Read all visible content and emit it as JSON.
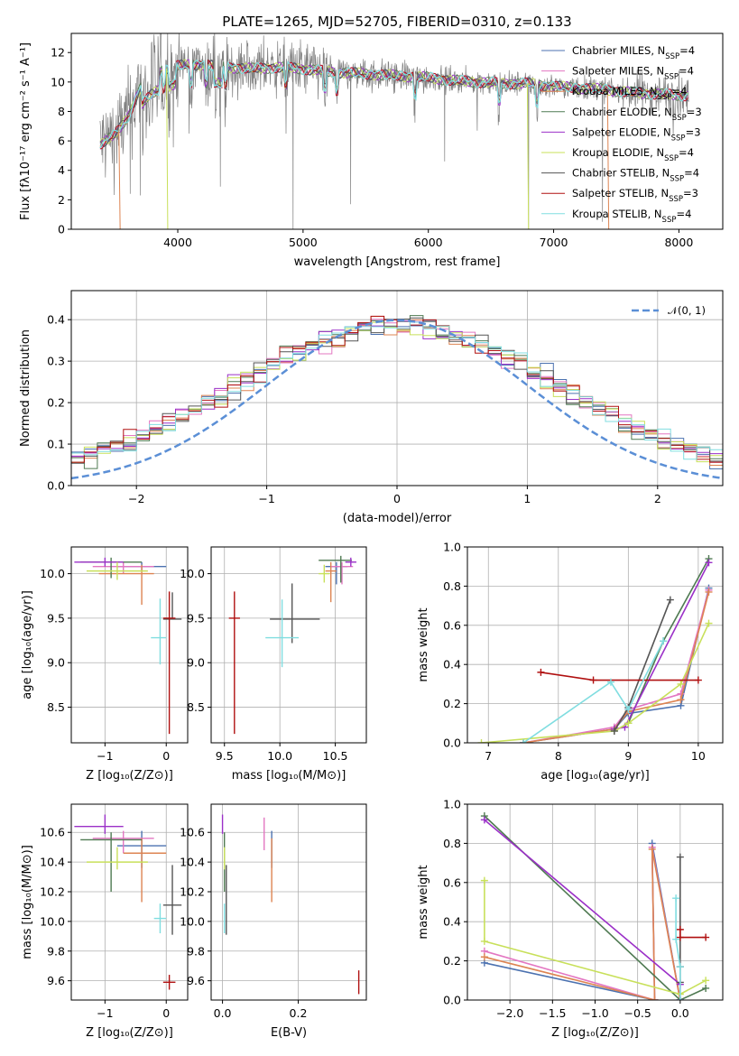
{
  "colors": {
    "Chabrier MILES": "#4c72b0",
    "Salpeter MILES": "#e377c2",
    "Kroupa MILES": "#dd8452",
    "Chabrier ELODIE": "#4f7a52",
    "Salpeter ELODIE": "#9b30c8",
    "Kroupa ELODIE": "#c8e05a",
    "Chabrier STELIB": "#555555",
    "Salpeter STELIB": "#b01010",
    "Kroupa STELIB": "#80dde0",
    "data": "#808080",
    "normal": "#5b8fd6"
  },
  "chart_data": [
    {
      "type": "line",
      "title": "PLATE=1265, MJD=52705, FIBERID=0310, z=0.133",
      "xlabel": "wavelength [Angstrom, rest frame]",
      "ylabel": "Flux [fλ10⁻¹⁷ erg cm⁻² s⁻¹ A⁻¹]",
      "xlim": [
        3150,
        8350
      ],
      "ylim": [
        0,
        13.3
      ],
      "xticks": [
        4000,
        5000,
        6000,
        7000,
        8000
      ],
      "yticks": [
        0,
        2,
        4,
        6,
        8,
        10,
        12
      ],
      "legend_position": "right",
      "legend": [
        {
          "label": "Chabrier MILES, N",
          "sub": "SSP",
          "eq": "=4",
          "color": "Chabrier MILES"
        },
        {
          "label": "Salpeter MILES, N",
          "sub": "SSP",
          "eq": "=4",
          "color": "Salpeter MILES"
        },
        {
          "label": "Kroupa MILES, N",
          "sub": "SSP",
          "eq": "=4",
          "color": "Kroupa MILES"
        },
        {
          "label": "Chabrier ELODIE, N",
          "sub": "SSP",
          "eq": "=3",
          "color": "Chabrier ELODIE"
        },
        {
          "label": "Salpeter ELODIE, N",
          "sub": "SSP",
          "eq": "=3",
          "color": "Salpeter ELODIE"
        },
        {
          "label": "Kroupa ELODIE, N",
          "sub": "SSP",
          "eq": "=4",
          "color": "Kroupa ELODIE"
        },
        {
          "label": "Chabrier STELIB, N",
          "sub": "SSP",
          "eq": "=4",
          "color": "Chabrier STELIB"
        },
        {
          "label": "Salpeter STELIB, N",
          "sub": "SSP",
          "eq": "=3",
          "color": "Salpeter STELIB"
        },
        {
          "label": "Kroupa STELIB, N",
          "sub": "SSP",
          "eq": "=4",
          "color": "Kroupa STELIB"
        }
      ],
      "continuum": {
        "x": [
          3380,
          3500,
          3600,
          3700,
          3800,
          3900,
          4000,
          4200,
          4400,
          4600,
          4800,
          5000,
          5200,
          5400,
          5600,
          5800,
          6000,
          6200,
          6400,
          6600,
          6800,
          7000,
          7200,
          7400,
          7600,
          7800,
          8000,
          8080
        ],
        "y": [
          5.8,
          6.4,
          7.6,
          9.6,
          10.4,
          10.9,
          11.1,
          11.2,
          11.0,
          10.9,
          11.0,
          10.9,
          10.7,
          10.6,
          10.5,
          10.4,
          10.3,
          10.1,
          10.0,
          9.9,
          9.9,
          9.7,
          9.6,
          9.5,
          9.3,
          9.2,
          9.1,
          9.1
        ]
      }
    },
    {
      "type": "line",
      "xlabel": "(data-model)/error",
      "ylabel": "Normed distribution",
      "xlim": [
        -2.5,
        2.5
      ],
      "ylim": [
        0,
        0.47
      ],
      "xticks": [
        -2,
        -1,
        0,
        1,
        2
      ],
      "yticks": [
        0.0,
        0.1,
        0.2,
        0.3,
        0.4
      ],
      "legend": {
        "label": "𝒩(0, 1)",
        "position": "top-right"
      },
      "series": [
        {
          "name": "N(0,1)",
          "function": "normal",
          "mu": 0,
          "sigma": 1
        }
      ]
    },
    {
      "type": "scatter",
      "xlabel": "Z [log₁₀(Z/Z⊙)]",
      "ylabel": "age  [log₁₀(age/yr)]",
      "xlim": [
        -1.55,
        0.35
      ],
      "ylim": [
        8.1,
        10.3
      ],
      "xticks": [
        -1,
        0
      ],
      "yticks": [
        8.5,
        9.0,
        9.5,
        10.0
      ],
      "points": [
        {
          "model": "Chabrier MILES",
          "x": -0.4,
          "y": 10.08,
          "xerr": [
            0.4,
            0.4
          ],
          "yerr": [
            0.05,
            0.05
          ]
        },
        {
          "model": "Salpeter MILES",
          "x": -0.7,
          "y": 10.08,
          "xerr": [
            0.5,
            0.5
          ],
          "yerr": [
            0.08,
            0.05
          ]
        },
        {
          "model": "Kroupa MILES",
          "x": -0.4,
          "y": 10.0,
          "xerr": [
            0.7,
            0.2
          ],
          "yerr": [
            0.35,
            0.1
          ]
        },
        {
          "model": "Chabrier ELODIE",
          "x": -0.9,
          "y": 10.13,
          "xerr": [
            0.5,
            0.5
          ],
          "yerr": [
            0.18,
            0.05
          ]
        },
        {
          "model": "Salpeter ELODIE",
          "x": -1.0,
          "y": 10.13,
          "xerr": [
            0.5,
            0.3
          ],
          "yerr": [
            0.05,
            0.05
          ]
        },
        {
          "model": "Kroupa ELODIE",
          "x": -0.8,
          "y": 10.03,
          "xerr": [
            0.5,
            0.5
          ],
          "yerr": [
            0.1,
            0.1
          ]
        },
        {
          "model": "Chabrier STELIB",
          "x": 0.1,
          "y": 9.49,
          "xerr": [
            0.15,
            0.15
          ],
          "yerr": [
            0.0,
            0.3
          ]
        },
        {
          "model": "Salpeter STELIB",
          "x": 0.05,
          "y": 9.5,
          "xerr": [
            0.1,
            0.1
          ],
          "yerr": [
            1.3,
            0.3
          ]
        },
        {
          "model": "Kroupa STELIB",
          "x": -0.1,
          "y": 9.28,
          "xerr": [
            0.15,
            0.1
          ],
          "yerr": [
            0.3,
            0.44
          ]
        }
      ]
    },
    {
      "type": "scatter",
      "xlabel": "mass [log₁₀(M/M⊙)]",
      "xlim": [
        9.38,
        10.78
      ],
      "ylim": [
        8.1,
        10.3
      ],
      "xticks": [
        9.5,
        10.0,
        10.5
      ],
      "yticks": [
        8.5,
        9.0,
        9.5,
        10.0
      ],
      "points": [
        {
          "model": "Chabrier MILES",
          "x": 10.51,
          "y": 10.08,
          "xerr": [
            0.1,
            0.1
          ],
          "yerr": [
            0.2,
            0.05
          ]
        },
        {
          "model": "Salpeter MILES",
          "x": 10.56,
          "y": 10.08,
          "xerr": [
            0.1,
            0.1
          ],
          "yerr": [
            0.2,
            0.05
          ]
        },
        {
          "model": "Kroupa MILES",
          "x": 10.46,
          "y": 10.03,
          "xerr": [
            0.05,
            0.05
          ],
          "yerr": [
            0.35,
            0.1
          ]
        },
        {
          "model": "Chabrier ELODIE",
          "x": 10.55,
          "y": 10.15,
          "xerr": [
            0.2,
            0.1
          ],
          "yerr": [
            0.25,
            0.05
          ]
        },
        {
          "model": "Salpeter ELODIE",
          "x": 10.64,
          "y": 10.13,
          "xerr": [
            0.05,
            0.05
          ],
          "yerr": [
            0.05,
            0.05
          ]
        },
        {
          "model": "Kroupa ELODIE",
          "x": 10.4,
          "y": 10.0,
          "xerr": [
            0.05,
            0.05
          ],
          "yerr": [
            0.1,
            0.1
          ]
        },
        {
          "model": "Chabrier STELIB",
          "x": 10.11,
          "y": 9.49,
          "xerr": [
            0.2,
            0.25
          ],
          "yerr": [
            0.27,
            0.4
          ]
        },
        {
          "model": "Salpeter STELIB",
          "x": 9.59,
          "y": 9.5,
          "xerr": [
            0.05,
            0.05
          ],
          "yerr": [
            1.3,
            0.3
          ]
        },
        {
          "model": "Kroupa STELIB",
          "x": 10.02,
          "y": 9.28,
          "xerr": [
            0.15,
            0.15
          ],
          "yerr": [
            0.33,
            0.43
          ]
        }
      ]
    },
    {
      "type": "line",
      "xlabel": "age  [log₁₀(age/yr)]",
      "ylabel": "mass weight",
      "xlim": [
        6.7,
        10.35
      ],
      "ylim": [
        0,
        1.0
      ],
      "xticks": [
        7,
        8,
        9,
        10
      ],
      "yticks": [
        0.0,
        0.2,
        0.4,
        0.6,
        0.8,
        1.0
      ],
      "series": [
        {
          "name": "Chabrier MILES",
          "x": [
            7.5,
            8.8,
            9.0,
            9.75,
            10.15
          ],
          "y": [
            0.0,
            0.07,
            0.15,
            0.19,
            0.79
          ]
        },
        {
          "name": "Salpeter MILES",
          "x": [
            7.5,
            8.8,
            9.0,
            9.75,
            10.15
          ],
          "y": [
            0.0,
            0.08,
            0.17,
            0.25,
            0.78
          ]
        },
        {
          "name": "Kroupa MILES",
          "x": [
            7.5,
            8.8,
            9.0,
            9.75,
            10.15
          ],
          "y": [
            0.0,
            0.07,
            0.16,
            0.22,
            0.77
          ]
        },
        {
          "name": "Chabrier ELODIE",
          "x": [
            8.8,
            9.0,
            9.5,
            10.15
          ],
          "y": [
            0.06,
            0.1,
            0.52,
            0.94
          ]
        },
        {
          "name": "Salpeter ELODIE",
          "x": [
            8.8,
            8.95,
            10.15
          ],
          "y": [
            0.07,
            0.08,
            0.92
          ]
        },
        {
          "name": "Kroupa ELODIE",
          "x": [
            6.9,
            8.8,
            9.0,
            9.75,
            10.15
          ],
          "y": [
            0.0,
            0.06,
            0.1,
            0.3,
            0.61
          ]
        },
        {
          "name": "Chabrier STELIB",
          "x": [
            8.8,
            9.0,
            9.6
          ],
          "y": [
            0.06,
            0.18,
            0.73
          ]
        },
        {
          "name": "Salpeter STELIB",
          "x": [
            7.75,
            8.5,
            10.0
          ],
          "y": [
            0.36,
            0.32,
            0.32
          ]
        },
        {
          "name": "Kroupa STELIB",
          "x": [
            7.5,
            8.75,
            9.0,
            9.5
          ],
          "y": [
            0.0,
            0.31,
            0.17,
            0.52
          ]
        }
      ]
    },
    {
      "type": "scatter",
      "xlabel": "Z [log₁₀(Z/Z⊙)]",
      "ylabel": "mass [log₁₀(M/M⊙)]",
      "xlim": [
        -1.55,
        0.35
      ],
      "ylim": [
        9.47,
        10.79
      ],
      "xticks": [
        -1,
        0
      ],
      "yticks": [
        9.6,
        9.8,
        10.0,
        10.2,
        10.4,
        10.6
      ],
      "points": [
        {
          "model": "Chabrier MILES",
          "x": -0.4,
          "y": 10.51,
          "xerr": [
            0.4,
            0.4
          ],
          "yerr": [
            0.15,
            0.1
          ]
        },
        {
          "model": "Salpeter MILES",
          "x": -0.7,
          "y": 10.56,
          "xerr": [
            0.5,
            0.5
          ],
          "yerr": [
            0.1,
            0.05
          ]
        },
        {
          "model": "Kroupa MILES",
          "x": -0.4,
          "y": 10.46,
          "xerr": [
            0.3,
            0.4
          ],
          "yerr": [
            0.33,
            0.1
          ]
        },
        {
          "model": "Chabrier ELODIE",
          "x": -0.9,
          "y": 10.55,
          "xerr": [
            0.5,
            0.5
          ],
          "yerr": [
            0.35,
            0.05
          ]
        },
        {
          "model": "Salpeter ELODIE",
          "x": -1.0,
          "y": 10.64,
          "xerr": [
            0.5,
            0.3
          ],
          "yerr": [
            0.05,
            0.08
          ]
        },
        {
          "model": "Kroupa ELODIE",
          "x": -0.8,
          "y": 10.4,
          "xerr": [
            0.5,
            0.5
          ],
          "yerr": [
            0.05,
            0.1
          ]
        },
        {
          "model": "Chabrier STELIB",
          "x": 0.1,
          "y": 10.11,
          "xerr": [
            0.15,
            0.15
          ],
          "yerr": [
            0.2,
            0.27
          ]
        },
        {
          "model": "Salpeter STELIB",
          "x": 0.05,
          "y": 9.59,
          "xerr": [
            0.1,
            0.1
          ],
          "yerr": [
            0.05,
            0.05
          ]
        },
        {
          "model": "Kroupa STELIB",
          "x": -0.1,
          "y": 10.02,
          "xerr": [
            0.1,
            0.1
          ],
          "yerr": [
            0.1,
            0.1
          ]
        }
      ]
    },
    {
      "type": "scatter",
      "xlabel": "E(B-V)",
      "xlim": [
        -0.03,
        0.38
      ],
      "ylim": [
        9.47,
        10.79
      ],
      "xticks": [
        0.0,
        0.2
      ],
      "yticks": [
        9.6,
        9.8,
        10.0,
        10.2,
        10.4,
        10.6
      ],
      "points": [
        {
          "model": "Chabrier MILES",
          "x": 0.13,
          "y": 10.51,
          "xerr": [
            0,
            0
          ],
          "yerr": [
            0.15,
            0.1
          ]
        },
        {
          "model": "Salpeter MILES",
          "x": 0.11,
          "y": 10.56,
          "xerr": [
            0,
            0
          ],
          "yerr": [
            0.08,
            0.14
          ]
        },
        {
          "model": "Kroupa MILES",
          "x": 0.13,
          "y": 10.46,
          "xerr": [
            0,
            0
          ],
          "yerr": [
            0.33,
            0.1
          ]
        },
        {
          "model": "Chabrier ELODIE",
          "x": 0.005,
          "y": 10.55,
          "xerr": [
            0,
            0
          ],
          "yerr": [
            0.35,
            0.05
          ]
        },
        {
          "model": "Salpeter ELODIE",
          "x": 0.0,
          "y": 10.64,
          "xerr": [
            0,
            0
          ],
          "yerr": [
            0.05,
            0.08
          ]
        },
        {
          "model": "Kroupa ELODIE",
          "x": 0.005,
          "y": 10.4,
          "xerr": [
            0,
            0
          ],
          "yerr": [
            0.05,
            0.1
          ]
        },
        {
          "model": "Chabrier STELIB",
          "x": 0.01,
          "y": 10.11,
          "xerr": [
            0,
            0
          ],
          "yerr": [
            0.2,
            0.27
          ]
        },
        {
          "model": "Salpeter STELIB",
          "x": 0.36,
          "y": 9.59,
          "xerr": [
            0,
            0
          ],
          "yerr": [
            0.08,
            0.08
          ]
        },
        {
          "model": "Kroupa STELIB",
          "x": 0.005,
          "y": 10.02,
          "xerr": [
            0,
            0
          ],
          "yerr": [
            0.1,
            0.1
          ]
        }
      ]
    },
    {
      "type": "line",
      "xlabel": "Z [log₁₀(Z/Z⊙)]",
      "ylabel": "mass weight",
      "xlim": [
        -2.5,
        0.5
      ],
      "ylim": [
        0,
        1.0
      ],
      "xticks": [
        -2.0,
        -1.5,
        -1.0,
        -0.5,
        0.0
      ],
      "yticks": [
        0.0,
        0.2,
        0.4,
        0.6,
        0.8,
        1.0
      ],
      "series": [
        {
          "name": "Chabrier MILES",
          "x": [
            -2.3,
            -0.3,
            -0.33,
            0.0
          ],
          "y": [
            0.19,
            0.0,
            0.8,
            0.0
          ]
        },
        {
          "name": "Salpeter MILES",
          "x": [
            -2.3,
            -0.3,
            -0.33,
            0.0
          ],
          "y": [
            0.25,
            0.0,
            0.78,
            0.0
          ]
        },
        {
          "name": "Kroupa MILES",
          "x": [
            -2.3,
            -0.3,
            -0.33,
            0.0
          ],
          "y": [
            0.22,
            0.0,
            0.77,
            0.0
          ]
        },
        {
          "name": "Chabrier ELODIE",
          "x": [
            -2.3,
            0.0,
            0.3
          ],
          "y": [
            0.94,
            0.0,
            0.06
          ]
        },
        {
          "name": "Salpeter ELODIE",
          "x": [
            -2.3,
            0.0,
            0.0
          ],
          "y": [
            0.92,
            0.08,
            0.0
          ]
        },
        {
          "name": "Kroupa ELODIE",
          "x": [
            -2.3,
            -2.3,
            0.0,
            0.3
          ],
          "y": [
            0.61,
            0.3,
            0.03,
            0.1
          ]
        },
        {
          "name": "Chabrier STELIB",
          "x": [
            0.0,
            0.0,
            0.0
          ],
          "y": [
            0.73,
            0.17,
            0.09
          ]
        },
        {
          "name": "Salpeter STELIB",
          "x": [
            0.0,
            0.0,
            0.3
          ],
          "y": [
            0.36,
            0.32,
            0.32
          ]
        },
        {
          "name": "Kroupa STELIB",
          "x": [
            -0.05,
            -0.05,
            0.0,
            0.0
          ],
          "y": [
            0.52,
            0.31,
            0.17,
            0.0
          ]
        }
      ]
    }
  ]
}
